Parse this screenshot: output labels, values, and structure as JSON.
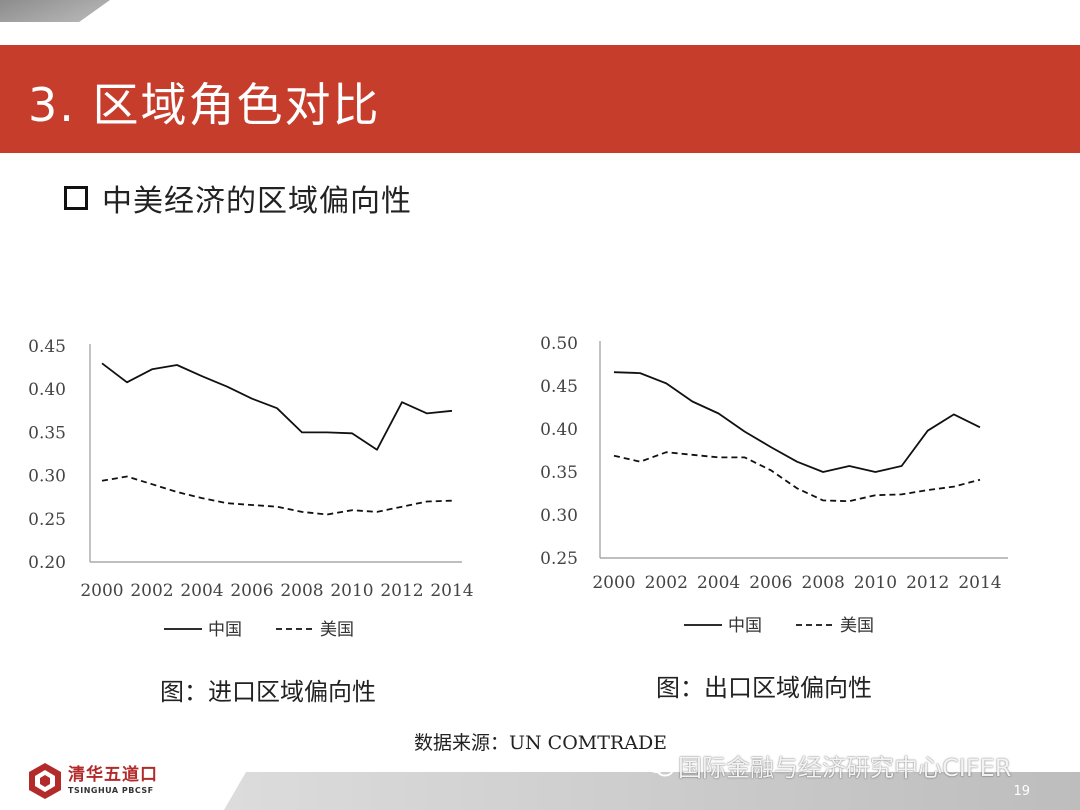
{
  "slide": {
    "title": "3. 区域角色对比",
    "bullet": "中美经济的区域偏向性",
    "source": "数据来源：UN COMTRADE",
    "page_number": "19",
    "logo_cn": "清华五道口",
    "logo_en": "TSINGHUA PBCSF",
    "watermark": "国际金融与经济研究中心CIFER",
    "accent_color": "#c63d2c",
    "logo_color": "#b32a2a"
  },
  "chart_data": [
    {
      "type": "line",
      "caption": "图：进口区域偏向性",
      "x": [
        2000,
        2001,
        2002,
        2003,
        2004,
        2005,
        2006,
        2007,
        2008,
        2009,
        2010,
        2011,
        2012,
        2013,
        2014
      ],
      "xticks": [
        "2000",
        "2002",
        "2004",
        "2006",
        "2008",
        "2010",
        "2012",
        "2014"
      ],
      "yticks": [
        "0.45",
        "0.40",
        "0.35",
        "0.30",
        "0.25",
        "0.20"
      ],
      "ylim": [
        0.2,
        0.45
      ],
      "series": [
        {
          "name": "中国",
          "style": "solid",
          "values": [
            0.43,
            0.408,
            0.423,
            0.428,
            0.415,
            0.403,
            0.389,
            0.378,
            0.35,
            0.35,
            0.349,
            0.33,
            0.385,
            0.372,
            0.375
          ]
        },
        {
          "name": "美国",
          "style": "dashed",
          "values": [
            0.294,
            0.299,
            0.29,
            0.281,
            0.274,
            0.268,
            0.266,
            0.264,
            0.258,
            0.255,
            0.26,
            0.258,
            0.264,
            0.27,
            0.271
          ]
        }
      ]
    },
    {
      "type": "line",
      "caption": "图：出口区域偏向性",
      "x": [
        2000,
        2001,
        2002,
        2003,
        2004,
        2005,
        2006,
        2007,
        2008,
        2009,
        2010,
        2011,
        2012,
        2013,
        2014
      ],
      "xticks": [
        "2000",
        "2002",
        "2004",
        "2006",
        "2008",
        "2010",
        "2012",
        "2014"
      ],
      "yticks": [
        "0.50",
        "0.45",
        "0.40",
        "0.35",
        "0.30",
        "0.25"
      ],
      "ylim": [
        0.25,
        0.5
      ],
      "series": [
        {
          "name": "中国",
          "style": "solid",
          "values": [
            0.466,
            0.465,
            0.453,
            0.432,
            0.418,
            0.397,
            0.379,
            0.362,
            0.35,
            0.357,
            0.35,
            0.357,
            0.398,
            0.417,
            0.402
          ]
        },
        {
          "name": "美国",
          "style": "dashed",
          "values": [
            0.369,
            0.362,
            0.373,
            0.37,
            0.367,
            0.367,
            0.352,
            0.331,
            0.317,
            0.316,
            0.323,
            0.324,
            0.329,
            0.333,
            0.341
          ]
        }
      ]
    }
  ]
}
